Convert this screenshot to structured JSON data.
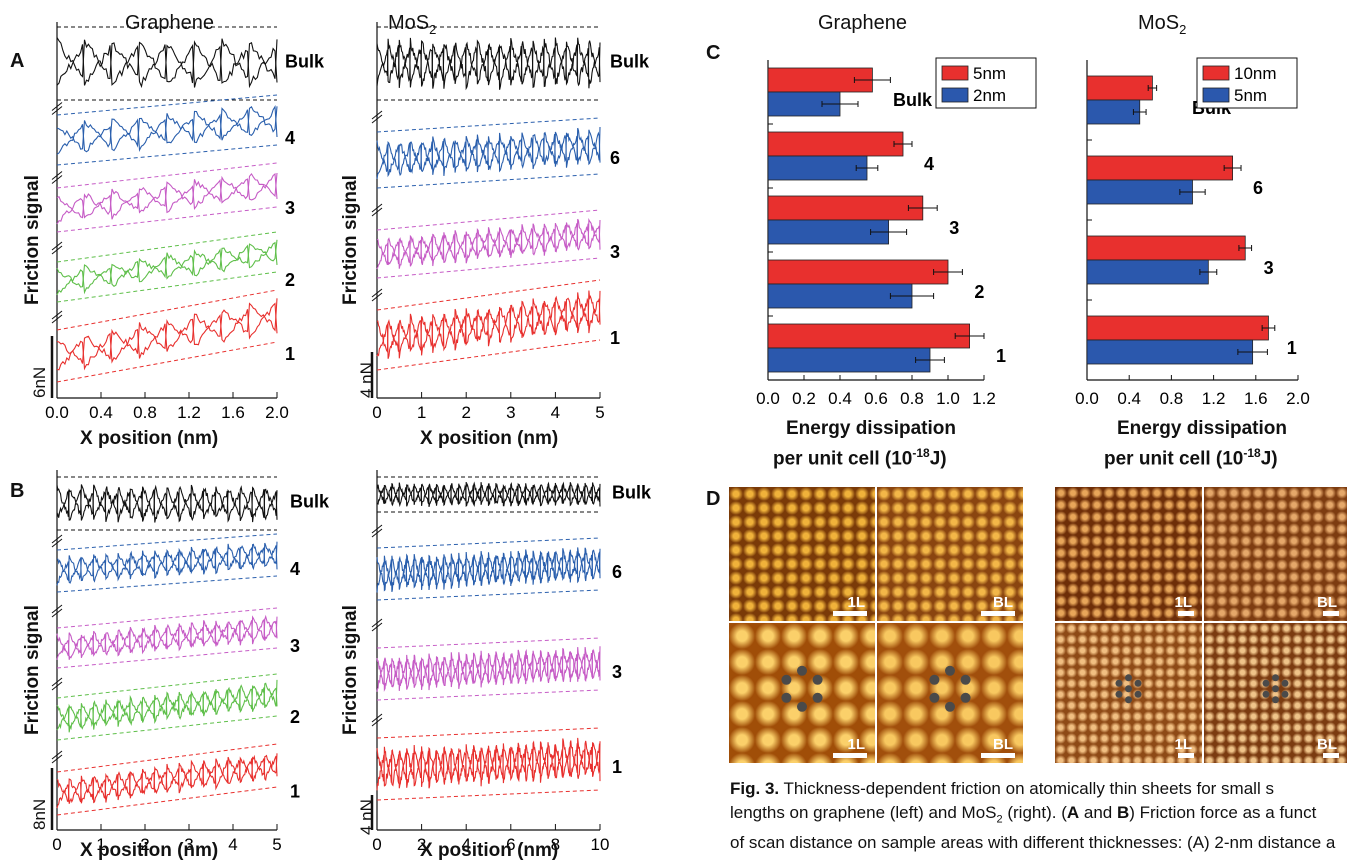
{
  "columns": {
    "a_left": "Graphene",
    "a_right": "MoS2",
    "c_left": "Graphene",
    "c_right": "MoS2"
  },
  "panel_letters": [
    "A",
    "B",
    "C",
    "D"
  ],
  "friction_axis_label": "Friction signal",
  "x_axis_label": "X position (nm)",
  "energy_axis_label_line1": "Energy dissipation",
  "energy_axis_label_line2": "per unit cell (10",
  "energy_axis_exp": "-18",
  "energy_axis_unit": "J)",
  "scalebars": {
    "a_graphene": "6nN",
    "a_mos2": "4 nN",
    "b_graphene": "8nN",
    "b_mos2": "4 nN"
  },
  "trace_labels": {
    "graphene": [
      "Bulk",
      "4",
      "3",
      "2",
      "1"
    ],
    "mos2": [
      "Bulk",
      "6",
      "3",
      "1"
    ]
  },
  "colors": {
    "Bulk": "#111111",
    "4": "#2a5fad",
    "6": "#2a5fad",
    "3": "#c65cc6",
    "2": "#5fbf4a",
    "1": "#e8302e",
    "bar_red": "#e8302e",
    "bar_blue": "#2b58ad"
  },
  "x_ticks": {
    "a_graphene": [
      "0.0",
      "0.4",
      "0.8",
      "1.2",
      "1.6",
      "2.0"
    ],
    "a_mos2": [
      "0",
      "1",
      "2",
      "3",
      "4",
      "5"
    ],
    "b_graphene": [
      "0",
      "1",
      "2",
      "3",
      "4",
      "5"
    ],
    "b_mos2": [
      "0",
      "2",
      "4",
      "6",
      "8",
      "10"
    ]
  },
  "chart_data": [
    {
      "type": "bar",
      "orientation": "horizontal",
      "column": "Graphene",
      "categories": [
        "Bulk",
        "4",
        "3",
        "2",
        "1"
      ],
      "series": [
        {
          "name": "5nm",
          "color": "#e8302e",
          "values": [
            0.58,
            0.75,
            0.86,
            1.0,
            1.12
          ],
          "errors": [
            0.1,
            0.05,
            0.08,
            0.08,
            0.08
          ]
        },
        {
          "name": "2nm",
          "color": "#2b58ad",
          "values": [
            0.4,
            0.55,
            0.67,
            0.8,
            0.9
          ],
          "errors": [
            0.1,
            0.06,
            0.1,
            0.12,
            0.08
          ]
        }
      ],
      "x_ticks": [
        "0.0",
        "0.2",
        "0.4",
        "0.6",
        "0.8",
        "1.0",
        "1.2"
      ],
      "xlim": [
        0,
        1.2
      ],
      "legend": "top-right"
    },
    {
      "type": "bar",
      "orientation": "horizontal",
      "column": "MoS2",
      "categories": [
        "Bulk",
        "6",
        "3",
        "1"
      ],
      "series": [
        {
          "name": "10nm",
          "color": "#e8302e",
          "values": [
            0.62,
            1.38,
            1.5,
            1.72
          ],
          "errors": [
            0.04,
            0.08,
            0.06,
            0.06
          ]
        },
        {
          "name": "5nm",
          "color": "#2b58ad",
          "values": [
            0.5,
            1.0,
            1.15,
            1.57
          ],
          "errors": [
            0.06,
            0.12,
            0.08,
            0.14
          ]
        }
      ],
      "x_ticks": [
        "0.0",
        "0.4",
        "0.8",
        "1.2",
        "1.6",
        "2.0"
      ],
      "xlim": [
        0,
        2.0
      ],
      "legend": "top-right"
    }
  ],
  "panel_d": {
    "labels": [
      "1L",
      "BL",
      "1L",
      "BL",
      "1L",
      "BL",
      "1L",
      "BL"
    ]
  },
  "caption": {
    "fig": "Fig. 3.",
    "line1": "Thickness-dependent friction on atomically thin sheets for small s",
    "line2a": "lengths on graphene (left) and MoS",
    "line2b": " (right). (",
    "line2c": "A",
    "line2d": " and ",
    "line2e": "B",
    "line2f": ") Friction force as a funct",
    "line3": "of scan distance on sample areas with different thicknesses: (A) 2-nm distance a"
  }
}
